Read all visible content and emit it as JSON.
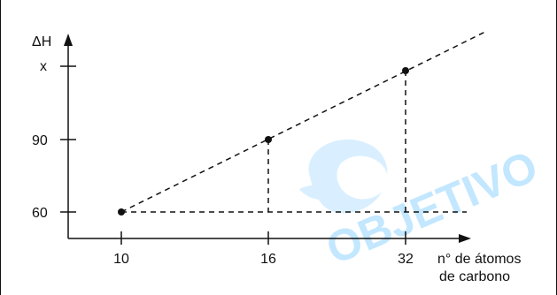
{
  "chart_data": {
    "type": "scatter",
    "ylabel": "ΔH",
    "xlabel_lines": [
      "n° de átomos",
      "de carbono"
    ],
    "x_ticks": [
      "10",
      "16",
      "32"
    ],
    "y_ticks": [
      "60",
      "90",
      "x"
    ],
    "points": [
      {
        "x": 10,
        "y": 60
      },
      {
        "x": 16,
        "y": 90
      },
      {
        "x": 32,
        "y": "x"
      }
    ],
    "trend_line": "dashed",
    "guide_lines": "dashed",
    "grid": false,
    "watermark": {
      "text": "OBJETIVO",
      "color": "#bfe6ff"
    },
    "colors": {
      "ink": "#111111",
      "watermark": "#bfe6ff"
    }
  }
}
